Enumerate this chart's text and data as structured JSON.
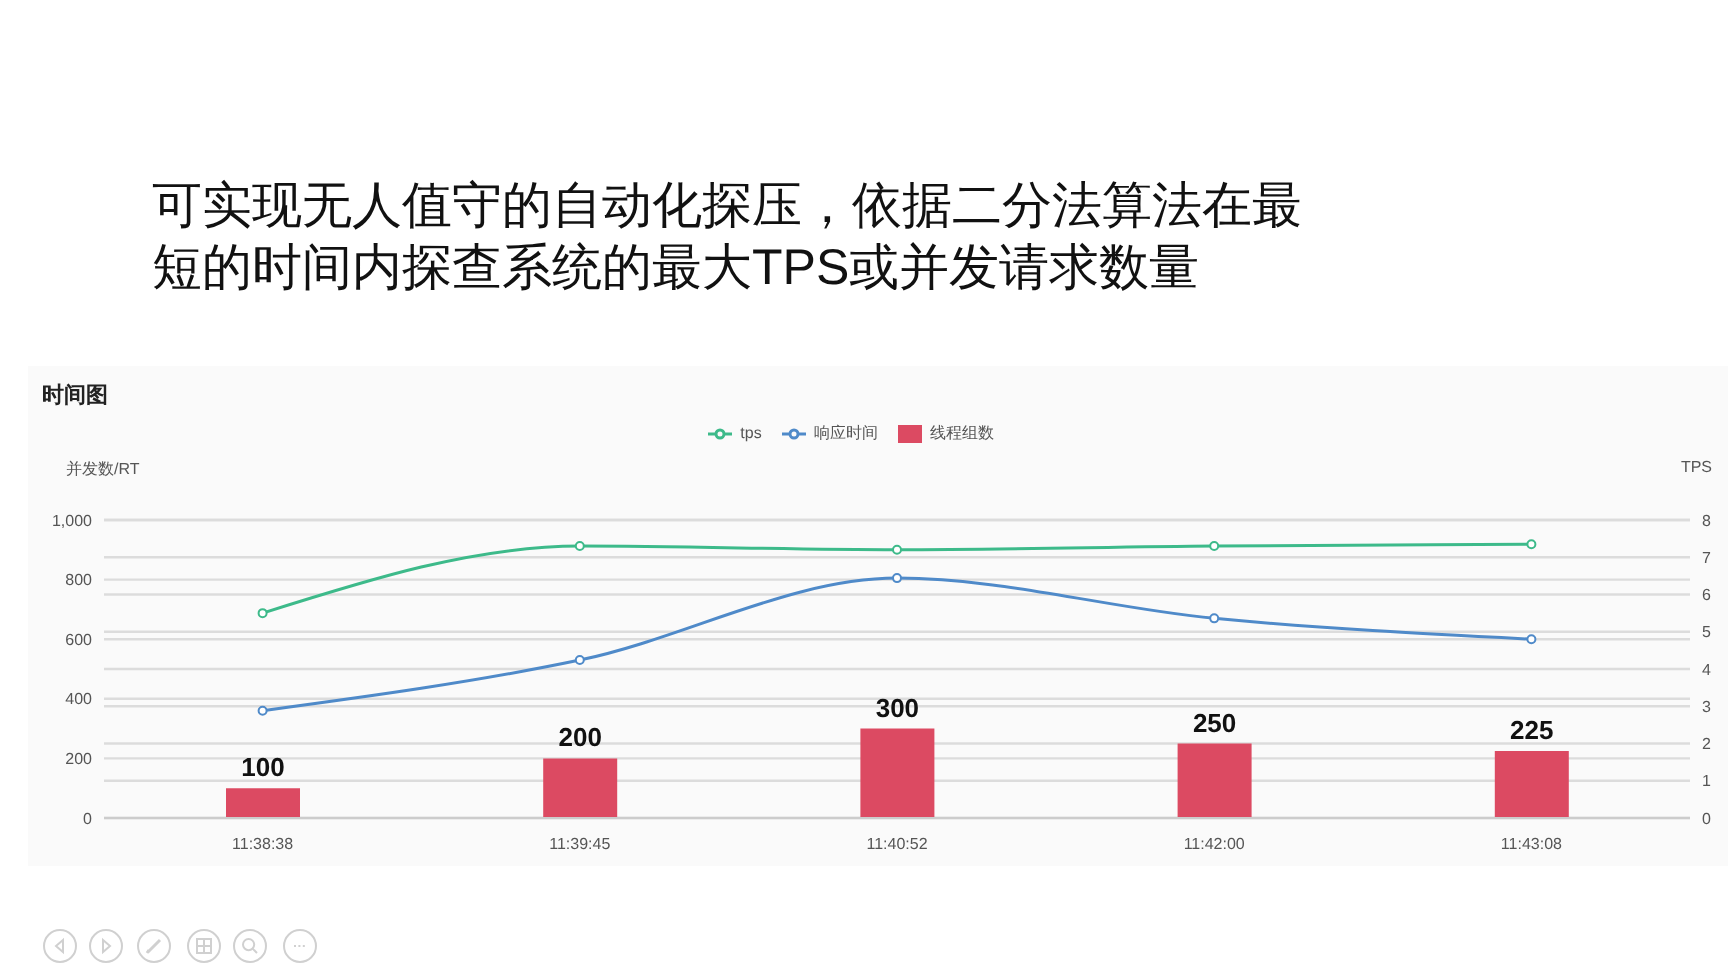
{
  "chart_data": {
    "type": "bar",
    "title": "可实现无人值守的自动化探压，依据二分法算法在最短的时间内探查系统的最大TPS或并发请求数量",
    "subtitle": "时间图",
    "ylabel": "并发数/RT",
    "y2label": "TPS",
    "categories": [
      "11:38:38",
      "11:39:45",
      "11:40:52",
      "11:42:00",
      "11:43:08"
    ],
    "series": [
      {
        "name": "tps",
        "type": "line",
        "axis": "y2",
        "color": "#3dba8a",
        "values": [
          5.5,
          7.3,
          7.2,
          7.3,
          7.35
        ]
      },
      {
        "name": "响应时间",
        "type": "line",
        "color": "#4f8ac9",
        "values": [
          360,
          530,
          805,
          670,
          600
        ]
      },
      {
        "name": "线程组数",
        "color": "#dc4a62",
        "values": [
          100,
          200,
          300,
          250,
          225
        ],
        "value_labels": [
          "100",
          "200",
          "300",
          "250",
          "225"
        ]
      }
    ],
    "ylim": [
      0,
      1000
    ],
    "yticks": [
      0,
      200,
      400,
      600,
      800,
      {
        "value": 1000,
        "label": "1,000"
      }
    ],
    "y2lim": [
      0,
      8
    ],
    "y2ticks": [
      0,
      1,
      2,
      3,
      4,
      5,
      6,
      7,
      8
    ],
    "grid": "y",
    "legend": "top",
    "marker": "circle"
  }
}
